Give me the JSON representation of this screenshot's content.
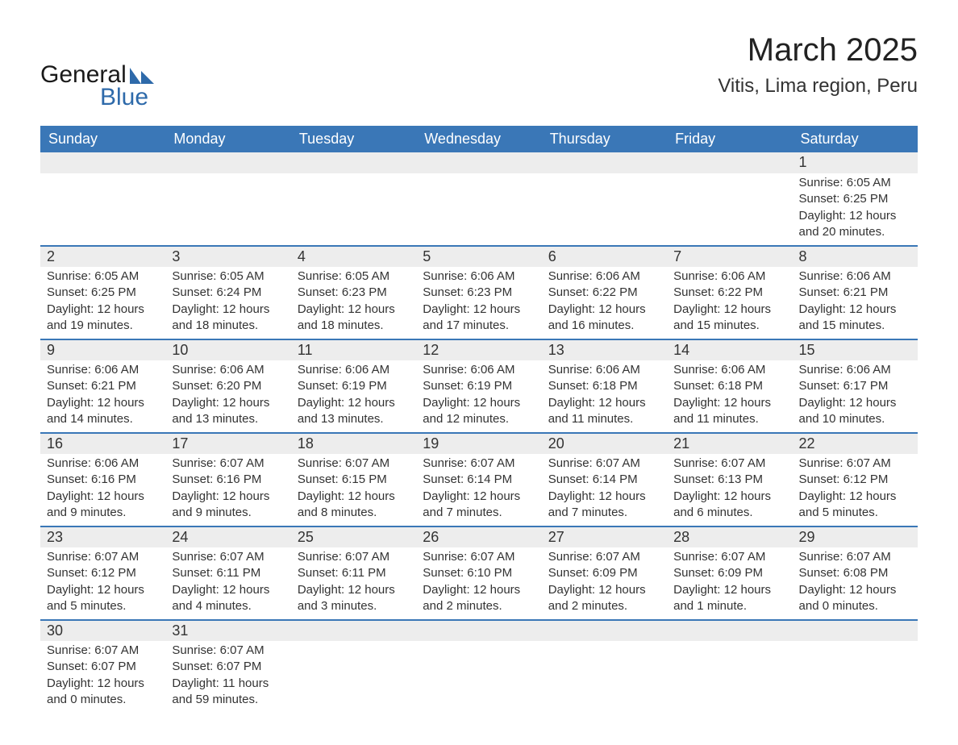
{
  "brand": {
    "word1": "General",
    "word2": "Blue",
    "word1_color": "#1a1a1a",
    "word2_color": "#2e6aaa",
    "icon_color": "#2e6aaa"
  },
  "title": "March 2025",
  "location": "Vitis, Lima region, Peru",
  "colors": {
    "header_bg": "#3a77b7",
    "header_text": "#ffffff",
    "daynum_bg": "#ededed",
    "row_border": "#3a77b7",
    "body_text": "#333333",
    "page_bg": "#ffffff"
  },
  "typography": {
    "title_fontsize": 40,
    "location_fontsize": 24,
    "weekday_fontsize": 18,
    "daynum_fontsize": 18,
    "detail_fontsize": 15
  },
  "weekdays": [
    "Sunday",
    "Monday",
    "Tuesday",
    "Wednesday",
    "Thursday",
    "Friday",
    "Saturday"
  ],
  "weeks": [
    [
      {
        "day": "",
        "sunrise": "",
        "sunset": "",
        "daylight": ""
      },
      {
        "day": "",
        "sunrise": "",
        "sunset": "",
        "daylight": ""
      },
      {
        "day": "",
        "sunrise": "",
        "sunset": "",
        "daylight": ""
      },
      {
        "day": "",
        "sunrise": "",
        "sunset": "",
        "daylight": ""
      },
      {
        "day": "",
        "sunrise": "",
        "sunset": "",
        "daylight": ""
      },
      {
        "day": "",
        "sunrise": "",
        "sunset": "",
        "daylight": ""
      },
      {
        "day": "1",
        "sunrise": "Sunrise: 6:05 AM",
        "sunset": "Sunset: 6:25 PM",
        "daylight": "Daylight: 12 hours and 20 minutes."
      }
    ],
    [
      {
        "day": "2",
        "sunrise": "Sunrise: 6:05 AM",
        "sunset": "Sunset: 6:25 PM",
        "daylight": "Daylight: 12 hours and 19 minutes."
      },
      {
        "day": "3",
        "sunrise": "Sunrise: 6:05 AM",
        "sunset": "Sunset: 6:24 PM",
        "daylight": "Daylight: 12 hours and 18 minutes."
      },
      {
        "day": "4",
        "sunrise": "Sunrise: 6:05 AM",
        "sunset": "Sunset: 6:23 PM",
        "daylight": "Daylight: 12 hours and 18 minutes."
      },
      {
        "day": "5",
        "sunrise": "Sunrise: 6:06 AM",
        "sunset": "Sunset: 6:23 PM",
        "daylight": "Daylight: 12 hours and 17 minutes."
      },
      {
        "day": "6",
        "sunrise": "Sunrise: 6:06 AM",
        "sunset": "Sunset: 6:22 PM",
        "daylight": "Daylight: 12 hours and 16 minutes."
      },
      {
        "day": "7",
        "sunrise": "Sunrise: 6:06 AM",
        "sunset": "Sunset: 6:22 PM",
        "daylight": "Daylight: 12 hours and 15 minutes."
      },
      {
        "day": "8",
        "sunrise": "Sunrise: 6:06 AM",
        "sunset": "Sunset: 6:21 PM",
        "daylight": "Daylight: 12 hours and 15 minutes."
      }
    ],
    [
      {
        "day": "9",
        "sunrise": "Sunrise: 6:06 AM",
        "sunset": "Sunset: 6:21 PM",
        "daylight": "Daylight: 12 hours and 14 minutes."
      },
      {
        "day": "10",
        "sunrise": "Sunrise: 6:06 AM",
        "sunset": "Sunset: 6:20 PM",
        "daylight": "Daylight: 12 hours and 13 minutes."
      },
      {
        "day": "11",
        "sunrise": "Sunrise: 6:06 AM",
        "sunset": "Sunset: 6:19 PM",
        "daylight": "Daylight: 12 hours and 13 minutes."
      },
      {
        "day": "12",
        "sunrise": "Sunrise: 6:06 AM",
        "sunset": "Sunset: 6:19 PM",
        "daylight": "Daylight: 12 hours and 12 minutes."
      },
      {
        "day": "13",
        "sunrise": "Sunrise: 6:06 AM",
        "sunset": "Sunset: 6:18 PM",
        "daylight": "Daylight: 12 hours and 11 minutes."
      },
      {
        "day": "14",
        "sunrise": "Sunrise: 6:06 AM",
        "sunset": "Sunset: 6:18 PM",
        "daylight": "Daylight: 12 hours and 11 minutes."
      },
      {
        "day": "15",
        "sunrise": "Sunrise: 6:06 AM",
        "sunset": "Sunset: 6:17 PM",
        "daylight": "Daylight: 12 hours and 10 minutes."
      }
    ],
    [
      {
        "day": "16",
        "sunrise": "Sunrise: 6:06 AM",
        "sunset": "Sunset: 6:16 PM",
        "daylight": "Daylight: 12 hours and 9 minutes."
      },
      {
        "day": "17",
        "sunrise": "Sunrise: 6:07 AM",
        "sunset": "Sunset: 6:16 PM",
        "daylight": "Daylight: 12 hours and 9 minutes."
      },
      {
        "day": "18",
        "sunrise": "Sunrise: 6:07 AM",
        "sunset": "Sunset: 6:15 PM",
        "daylight": "Daylight: 12 hours and 8 minutes."
      },
      {
        "day": "19",
        "sunrise": "Sunrise: 6:07 AM",
        "sunset": "Sunset: 6:14 PM",
        "daylight": "Daylight: 12 hours and 7 minutes."
      },
      {
        "day": "20",
        "sunrise": "Sunrise: 6:07 AM",
        "sunset": "Sunset: 6:14 PM",
        "daylight": "Daylight: 12 hours and 7 minutes."
      },
      {
        "day": "21",
        "sunrise": "Sunrise: 6:07 AM",
        "sunset": "Sunset: 6:13 PM",
        "daylight": "Daylight: 12 hours and 6 minutes."
      },
      {
        "day": "22",
        "sunrise": "Sunrise: 6:07 AM",
        "sunset": "Sunset: 6:12 PM",
        "daylight": "Daylight: 12 hours and 5 minutes."
      }
    ],
    [
      {
        "day": "23",
        "sunrise": "Sunrise: 6:07 AM",
        "sunset": "Sunset: 6:12 PM",
        "daylight": "Daylight: 12 hours and 5 minutes."
      },
      {
        "day": "24",
        "sunrise": "Sunrise: 6:07 AM",
        "sunset": "Sunset: 6:11 PM",
        "daylight": "Daylight: 12 hours and 4 minutes."
      },
      {
        "day": "25",
        "sunrise": "Sunrise: 6:07 AM",
        "sunset": "Sunset: 6:11 PM",
        "daylight": "Daylight: 12 hours and 3 minutes."
      },
      {
        "day": "26",
        "sunrise": "Sunrise: 6:07 AM",
        "sunset": "Sunset: 6:10 PM",
        "daylight": "Daylight: 12 hours and 2 minutes."
      },
      {
        "day": "27",
        "sunrise": "Sunrise: 6:07 AM",
        "sunset": "Sunset: 6:09 PM",
        "daylight": "Daylight: 12 hours and 2 minutes."
      },
      {
        "day": "28",
        "sunrise": "Sunrise: 6:07 AM",
        "sunset": "Sunset: 6:09 PM",
        "daylight": "Daylight: 12 hours and 1 minute."
      },
      {
        "day": "29",
        "sunrise": "Sunrise: 6:07 AM",
        "sunset": "Sunset: 6:08 PM",
        "daylight": "Daylight: 12 hours and 0 minutes."
      }
    ],
    [
      {
        "day": "30",
        "sunrise": "Sunrise: 6:07 AM",
        "sunset": "Sunset: 6:07 PM",
        "daylight": "Daylight: 12 hours and 0 minutes."
      },
      {
        "day": "31",
        "sunrise": "Sunrise: 6:07 AM",
        "sunset": "Sunset: 6:07 PM",
        "daylight": "Daylight: 11 hours and 59 minutes."
      },
      {
        "day": "",
        "sunrise": "",
        "sunset": "",
        "daylight": ""
      },
      {
        "day": "",
        "sunrise": "",
        "sunset": "",
        "daylight": ""
      },
      {
        "day": "",
        "sunrise": "",
        "sunset": "",
        "daylight": ""
      },
      {
        "day": "",
        "sunrise": "",
        "sunset": "",
        "daylight": ""
      },
      {
        "day": "",
        "sunrise": "",
        "sunset": "",
        "daylight": ""
      }
    ]
  ]
}
